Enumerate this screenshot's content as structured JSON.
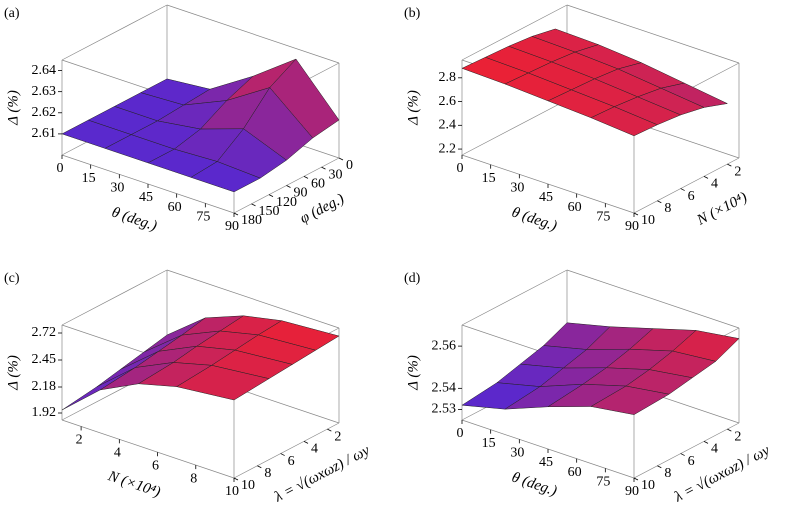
{
  "chart_data": [
    {
      "type": "surface",
      "panel_label": "(a)",
      "x_label": "θ (deg.)",
      "y_label": "φ (deg.)",
      "z_label": "Δ (%)",
      "colormap": [
        "#2b2bff",
        "#ff2020"
      ],
      "x": [
        0,
        22.5,
        45,
        67.5,
        90
      ],
      "y": [
        0,
        45,
        90,
        135,
        180
      ],
      "z": [
        [
          2.61,
          2.612,
          2.625,
          2.64,
          2.618
        ],
        [
          2.61,
          2.611,
          2.62,
          2.633,
          2.616
        ],
        [
          2.61,
          2.61,
          2.613,
          2.62,
          2.612
        ],
        [
          2.61,
          2.61,
          2.61,
          2.611,
          2.61
        ],
        [
          2.61,
          2.61,
          2.61,
          2.61,
          2.61
        ]
      ],
      "xlim": [
        0,
        90
      ],
      "ylim": [
        180,
        0
      ],
      "zlim": [
        2.6,
        2.645
      ],
      "xticks": [
        0,
        15,
        30,
        45,
        60,
        75,
        90
      ],
      "yticks": [
        0,
        30,
        60,
        90,
        120,
        150,
        180
      ],
      "zticks": [
        2.61,
        2.62,
        2.63,
        2.64
      ]
    },
    {
      "type": "surface",
      "panel_label": "(b)",
      "x_label": "θ (deg.)",
      "y_label": "N (×10⁴)",
      "z_label": "Δ (%)",
      "colormap": [
        "#2b2bff",
        "#ff2020"
      ],
      "x": [
        0,
        22.5,
        45,
        67.5,
        90
      ],
      "y": [
        2,
        4,
        6,
        8,
        10
      ],
      "z": [
        [
          2.8,
          2.79,
          2.76,
          2.71,
          2.66
        ],
        [
          2.84,
          2.83,
          2.81,
          2.77,
          2.73
        ],
        [
          2.86,
          2.85,
          2.83,
          2.8,
          2.77
        ],
        [
          2.87,
          2.86,
          2.84,
          2.82,
          2.79
        ],
        [
          2.88,
          2.87,
          2.85,
          2.83,
          2.8
        ]
      ],
      "xlim": [
        0,
        90
      ],
      "ylim": [
        10,
        1
      ],
      "zlim": [
        2.15,
        2.95
      ],
      "xticks": [
        0,
        15,
        30,
        45,
        60,
        75,
        90
      ],
      "yticks": [
        2,
        4,
        6,
        8,
        10
      ],
      "zticks": [
        2.2,
        2.4,
        2.6,
        2.8
      ]
    },
    {
      "type": "surface",
      "panel_label": "(c)",
      "x_label": "N (×10⁴)",
      "y_label": "λ = √(ωxωz) / ωy",
      "z_label": "Δ (%)",
      "colormap": [
        "#2b2bff",
        "#ff2020"
      ],
      "x": [
        1,
        3,
        5,
        7,
        10
      ],
      "y": [
        1,
        3,
        5,
        7,
        10
      ],
      "z": [
        [
          2.15,
          2.45,
          2.6,
          2.68,
          2.72
        ],
        [
          2.1,
          2.4,
          2.57,
          2.66,
          2.7
        ],
        [
          2.05,
          2.36,
          2.54,
          2.63,
          2.68
        ],
        [
          2.0,
          2.32,
          2.5,
          2.6,
          2.66
        ],
        [
          1.95,
          2.28,
          2.47,
          2.57,
          2.63
        ]
      ],
      "xlim": [
        1,
        10
      ],
      "ylim": [
        10,
        1
      ],
      "zlim": [
        1.85,
        2.8
      ],
      "xticks": [
        2,
        4,
        6,
        8,
        10
      ],
      "yticks": [
        2,
        4,
        6,
        8,
        10
      ],
      "zticks": [
        1.92,
        2.18,
        2.45,
        2.72
      ]
    },
    {
      "type": "surface",
      "panel_label": "(d)",
      "x_label": "θ (deg.)",
      "y_label": "λ = √(ωxωz) / ωy",
      "z_label": "Δ (%)",
      "colormap": [
        "#2b2bff",
        "#ff2020"
      ],
      "x": [
        0,
        22.5,
        45,
        67.5,
        90
      ],
      "y": [
        1,
        3,
        5,
        7,
        10
      ],
      "z": [
        [
          2.545,
          2.55,
          2.556,
          2.562,
          2.565
        ],
        [
          2.54,
          2.545,
          2.552,
          2.558,
          2.56
        ],
        [
          2.537,
          2.542,
          2.549,
          2.555,
          2.558
        ],
        [
          2.534,
          2.539,
          2.547,
          2.553,
          2.556
        ],
        [
          2.532,
          2.537,
          2.545,
          2.552,
          2.555
        ]
      ],
      "xlim": [
        0,
        90
      ],
      "ylim": [
        10,
        1
      ],
      "zlim": [
        2.525,
        2.57
      ],
      "xticks": [
        0,
        15,
        30,
        45,
        60,
        75,
        90
      ],
      "yticks": [
        2,
        4,
        6,
        8,
        10
      ],
      "zticks": [
        2.53,
        2.54,
        2.56
      ]
    }
  ]
}
